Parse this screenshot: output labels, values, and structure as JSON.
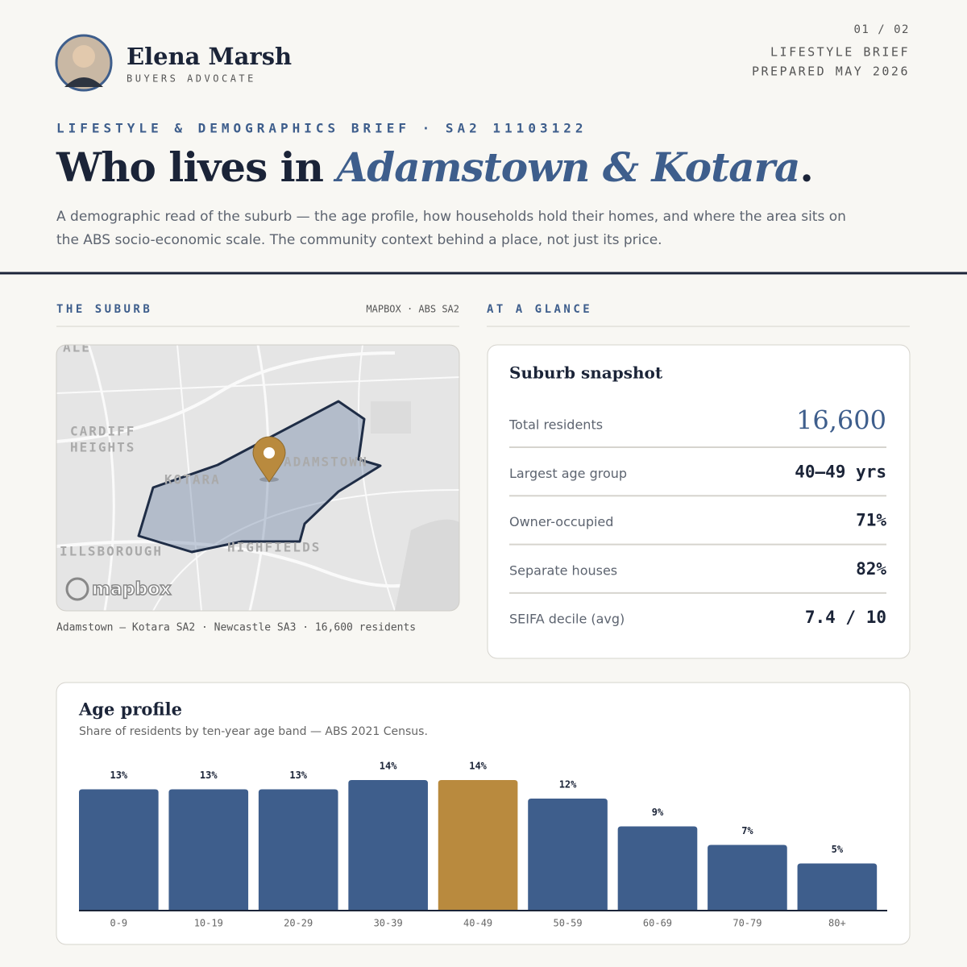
{
  "header": {
    "name": "Elena Marsh",
    "role": "BUYERS ADVOCATE",
    "page": "01 / 02",
    "doc_type": "LIFESTYLE BRIEF",
    "prepared": "PREPARED MAY 2026"
  },
  "hero": {
    "eyebrow": "LIFESTYLE & DEMOGRAPHICS BRIEF · SA2 11103122",
    "title_lead": "Who lives in ",
    "title_place": "Adamstown & Kotara",
    "title_end": ".",
    "intro": "A demographic read of the suburb — the age profile, how households hold their homes, and where the area sits on the ABS socio-economic scale. The community context behind a place, not just its price."
  },
  "suburb": {
    "heading": "THE SUBURB",
    "source": "MAPBOX · ABS SA2",
    "map_labels": [
      "ALE",
      "CARDIFF",
      "HEIGHTS",
      "KOTARA",
      "ADAMSTOWN",
      "ILLSBOROUGH",
      "HIGHFIELDS"
    ],
    "attribution": "mapbox",
    "caption": "Adamstown – Kotara SA2 · Newcastle SA3 · 16,600 residents"
  },
  "glance": {
    "heading": "AT A GLANCE",
    "card_title": "Suburb snapshot",
    "rows": [
      {
        "label": "Total residents",
        "value": "16,600"
      },
      {
        "label": "Largest age group",
        "value": "40–49 yrs"
      },
      {
        "label": "Owner-occupied",
        "value": "71%"
      },
      {
        "label": "Separate houses",
        "value": "82%"
      },
      {
        "label": "SEIFA decile (avg)",
        "value": "7.4 / 10"
      }
    ]
  },
  "chart_data": {
    "type": "bar",
    "title": "Age profile",
    "subtitle": "Share of residents by ten-year age band — ABS 2021 Census.",
    "categories": [
      "0-9",
      "10-19",
      "20-29",
      "30-39",
      "40-49",
      "50-59",
      "60-69",
      "70-79",
      "80+"
    ],
    "values": [
      13,
      13,
      13,
      14,
      14,
      12,
      9,
      7,
      5
    ],
    "value_labels": [
      "13%",
      "13%",
      "13%",
      "14%",
      "14%",
      "12%",
      "9%",
      "7%",
      "5%"
    ],
    "colors": [
      "#3e5e8c",
      "#3e5e8c",
      "#3e5e8c",
      "#3e5e8c",
      "#b98a3e",
      "#3e5e8c",
      "#3e5e8c",
      "#3e5e8c",
      "#3e5e8c"
    ],
    "ylim": [
      0,
      14
    ]
  }
}
